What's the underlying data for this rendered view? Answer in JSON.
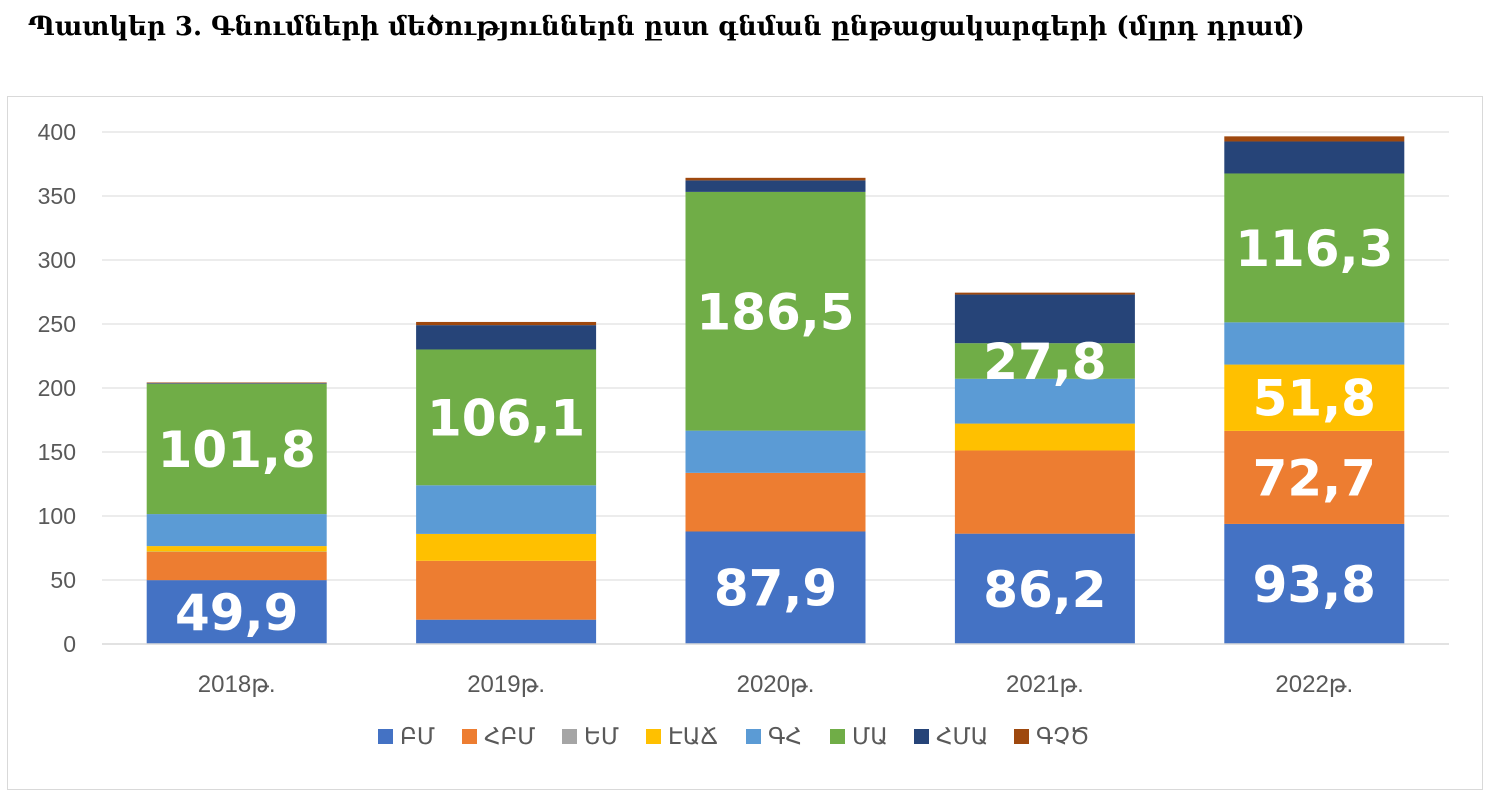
{
  "title": "Պատկեր 3.  Գնումների մեծություններն ըստ գնման ընթացակարգերի (մլրդ դրամ)",
  "chart_data": {
    "type": "bar",
    "stacked": true,
    "categories": [
      "2018թ.",
      "2019թ.",
      "2020թ.",
      "2021թ.",
      "2022թ."
    ],
    "ylim": [
      0,
      400
    ],
    "yticks": [
      0,
      50,
      100,
      150,
      200,
      250,
      300,
      350,
      400
    ],
    "grid": true,
    "legend_position": "bottom",
    "series": [
      {
        "name": "ԲՄ",
        "color": "#4472C4",
        "values": [
          49.9,
          19.0,
          87.9,
          86.2,
          93.8
        ],
        "labels": [
          "49,9",
          "",
          "87,9",
          "86,2",
          "93,8"
        ]
      },
      {
        "name": "ՀԲՄ",
        "color": "#ED7D31",
        "values": [
          22.0,
          46.0,
          45.8,
          65.0,
          72.7
        ],
        "labels": [
          "",
          "",
          "",
          "",
          "72,7"
        ]
      },
      {
        "name": "ԵՄ",
        "color": "#A5A5A5",
        "values": [
          0.3,
          0.0,
          0.0,
          0.0,
          0.0
        ],
        "labels": [
          "",
          "",
          "",
          "",
          ""
        ]
      },
      {
        "name": "ԷԱՃ",
        "color": "#FFC000",
        "values": [
          4.3,
          21.0,
          0.0,
          21.0,
          51.8
        ],
        "labels": [
          "",
          "",
          "",
          "",
          "51,8"
        ]
      },
      {
        "name": "ԳՀ",
        "color": "#5B9BD5",
        "values": [
          25.0,
          38.0,
          33.0,
          35.0,
          33.0
        ],
        "labels": [
          "",
          "",
          "",
          "",
          ""
        ]
      },
      {
        "name": "ՄԱ",
        "color": "#70AD47",
        "values": [
          101.8,
          106.1,
          186.5,
          27.8,
          116.3
        ],
        "labels": [
          "101,8",
          "106,1",
          "186,5",
          "27,8",
          "116,3"
        ]
      },
      {
        "name": "ՀՄԱ",
        "color": "#264478",
        "values": [
          0.5,
          19.0,
          9.0,
          38.0,
          25.0
        ],
        "labels": [
          "",
          "",
          "",
          "",
          ""
        ]
      },
      {
        "name": "ԳՉԾ",
        "color": "#9E480E",
        "values": [
          0.5,
          2.5,
          2.0,
          1.5,
          4.0
        ],
        "labels": [
          "",
          "",
          "",
          "",
          ""
        ]
      }
    ]
  }
}
